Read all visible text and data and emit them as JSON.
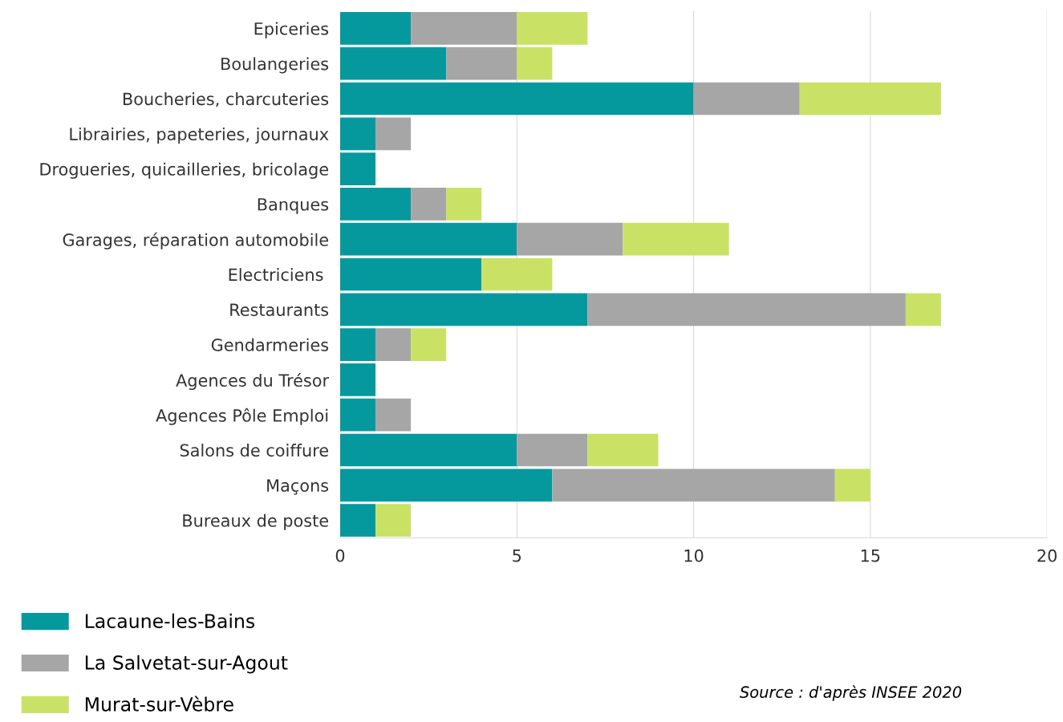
{
  "chart_data": {
    "type": "bar",
    "orientation": "horizontal",
    "stacked": true,
    "categories": [
      "Epiceries",
      "Boulangeries",
      "Boucheries, charcuteries",
      "Librairies, papeteries, journaux",
      "Drogueries, quicailleries, bricolage",
      "Banques",
      "Garages, réparation automobile",
      "Electriciens ",
      "Restaurants",
      "Gendarmeries",
      "Agences du Trésor",
      "Agences Pôle Emploi",
      "Salons de coiffure",
      "Maçons",
      "Bureaux de poste"
    ],
    "series": [
      {
        "name": "Lacaune-les-Bains",
        "color": "#05999e",
        "values": [
          2,
          3,
          10,
          1,
          1,
          2,
          5,
          4,
          7,
          1,
          1,
          1,
          5,
          6,
          1
        ]
      },
      {
        "name": "La Salvetat-sur-Agout",
        "color": "#a6a6a6",
        "values": [
          3,
          2,
          3,
          1,
          0,
          1,
          3,
          0,
          9,
          1,
          0,
          1,
          2,
          8,
          0
        ]
      },
      {
        "name": "Murat-sur-Vèbre",
        "color": "#c9e265",
        "values": [
          2,
          1,
          4,
          0,
          0,
          1,
          3,
          2,
          1,
          1,
          0,
          0,
          2,
          1,
          1
        ]
      }
    ],
    "xlim": [
      0,
      20
    ],
    "xticks": [
      0,
      5,
      10,
      15,
      20
    ],
    "grid": "x",
    "legend": "bottom left",
    "annotations": [
      "Source : d'après INSEE 2020"
    ]
  }
}
